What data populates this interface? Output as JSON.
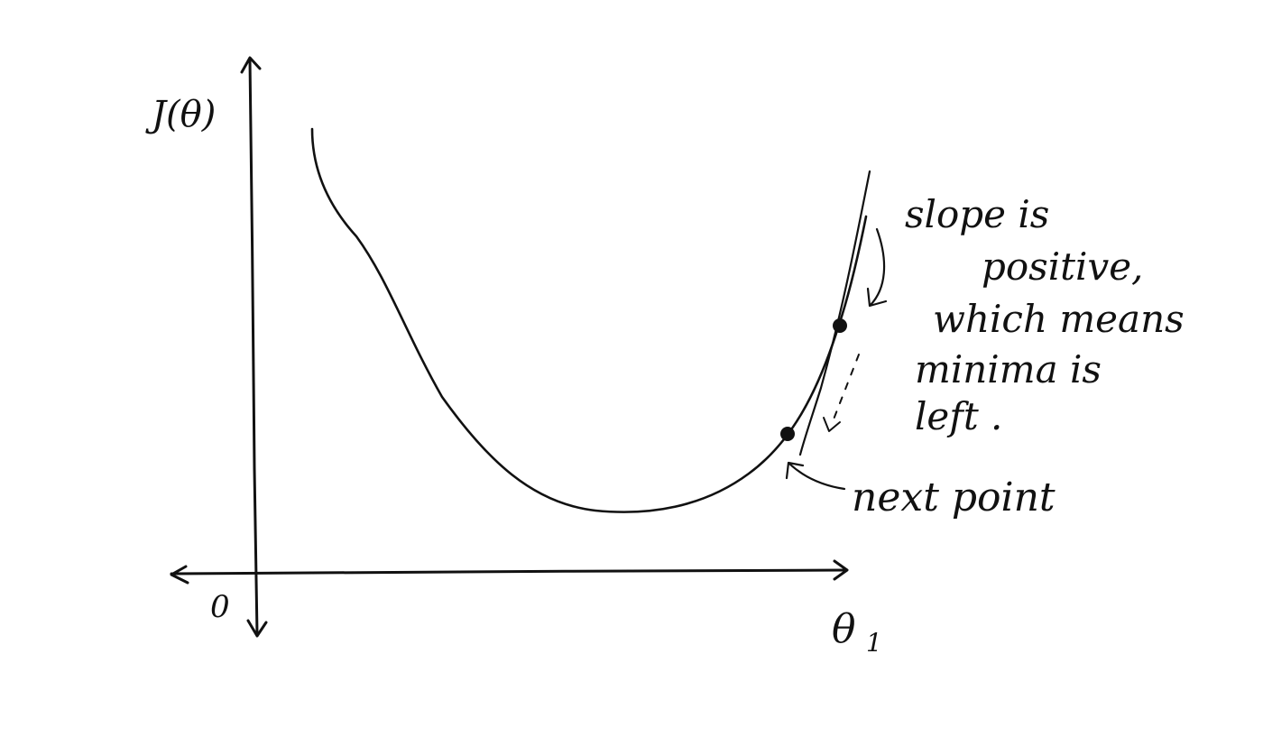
{
  "axes": {
    "y_label": "J(θ)",
    "x_label": "θ",
    "x_label_subscript": "1",
    "origin_label": "0"
  },
  "annotations": {
    "slope_note": [
      "slope is",
      "positive,",
      "which means",
      "minima is",
      "left ."
    ],
    "next_point_note": "next point"
  },
  "colors": {
    "ink": "#111111",
    "paper": "#ffffff"
  }
}
